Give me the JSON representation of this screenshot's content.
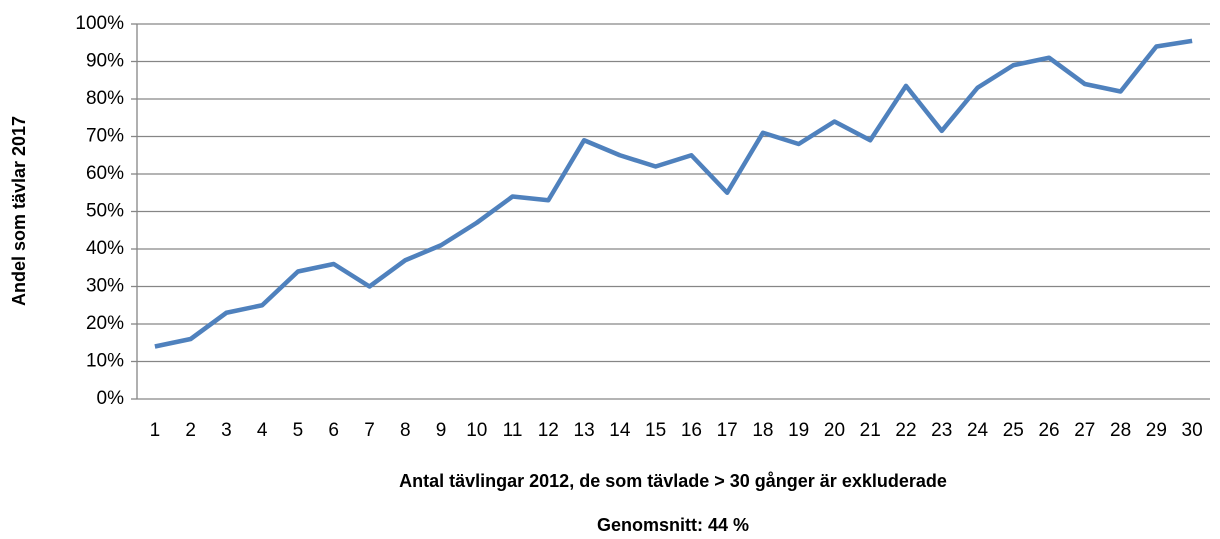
{
  "chart_data": {
    "type": "line",
    "y_label": "Andel  som tävlar  2017",
    "x_label": "Antal tävlingar 2012, de som tävlade > 30 gånger är exkluderade",
    "annotation": "Genomsnitt: 44 %",
    "categories": [
      "1",
      "2",
      "3",
      "4",
      "5",
      "6",
      "7",
      "8",
      "9",
      "10",
      "11",
      "12",
      "13",
      "14",
      "15",
      "16",
      "17",
      "18",
      "19",
      "20",
      "21",
      "22",
      "23",
      "24",
      "25",
      "26",
      "27",
      "28",
      "29",
      "30"
    ],
    "series": [
      {
        "name": "Andel som tävlar 2017",
        "color": "#4f81bd",
        "values": [
          14,
          16,
          23,
          25,
          34,
          36,
          30,
          37,
          41,
          47,
          54,
          53,
          69,
          65,
          62,
          65,
          55,
          71,
          68,
          74,
          69,
          83.5,
          71.5,
          83,
          89,
          91,
          84,
          82,
          94,
          95.5
        ]
      }
    ],
    "ylim": [
      0,
      100
    ],
    "yticks": [
      {
        "value": 0,
        "label": "0%"
      },
      {
        "value": 10,
        "label": "10%"
      },
      {
        "value": 20,
        "label": "20%"
      },
      {
        "value": 30,
        "label": "30%"
      },
      {
        "value": 40,
        "label": "40%"
      },
      {
        "value": 50,
        "label": "50%"
      },
      {
        "value": 60,
        "label": "60%"
      },
      {
        "value": 70,
        "label": "70%"
      },
      {
        "value": 80,
        "label": "80%"
      },
      {
        "value": 90,
        "label": "90%"
      },
      {
        "value": 100,
        "label": "100%"
      }
    ],
    "grid": true
  }
}
